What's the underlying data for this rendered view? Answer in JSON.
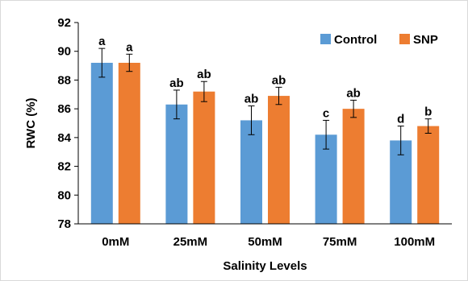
{
  "chart_data": {
    "type": "bar",
    "categories": [
      "0mM",
      "25mM",
      "50mM",
      "75mM",
      "100mM"
    ],
    "series": [
      {
        "name": "Control",
        "color": "#5B9BD5",
        "values": [
          89.2,
          86.3,
          85.2,
          84.2,
          83.8
        ],
        "errors": [
          1.0,
          1.0,
          1.0,
          1.0,
          1.0
        ],
        "labels": [
          "a",
          "ab",
          "ab",
          "c",
          "d"
        ]
      },
      {
        "name": "SNP",
        "color": "#ED7D31",
        "values": [
          89.2,
          87.2,
          86.9,
          86.0,
          84.8
        ],
        "errors": [
          0.6,
          0.7,
          0.6,
          0.6,
          0.5
        ],
        "labels": [
          "a",
          "ab",
          "ab",
          "ab",
          "b"
        ]
      }
    ],
    "xlabel": "Salinity Levels",
    "ylabel": "RWC (%)",
    "ylim": [
      78,
      92
    ],
    "yticks": [
      78,
      80,
      82,
      84,
      86,
      88,
      90,
      92
    ],
    "grid": false,
    "legend": "top-right",
    "frame_color": "#d9d9d9"
  }
}
